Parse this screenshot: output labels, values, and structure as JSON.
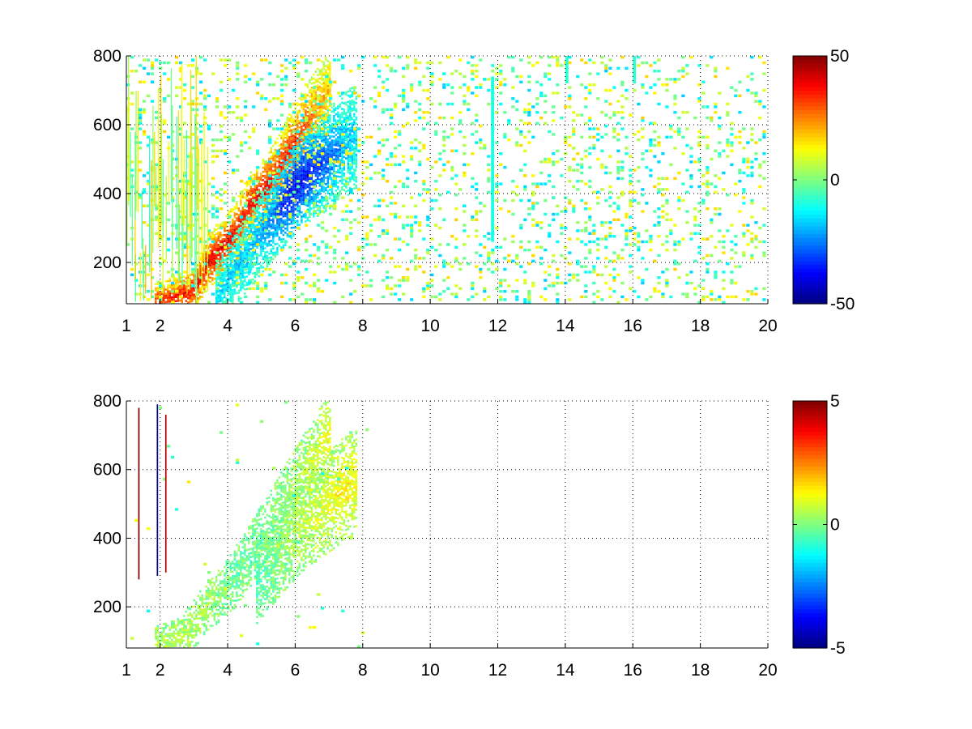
{
  "chart_data": [
    {
      "type": "heatmap",
      "title": "",
      "xlabel": "",
      "ylabel": "",
      "x_ticks": [
        1,
        2,
        4,
        6,
        8,
        10,
        12,
        14,
        16,
        18,
        20
      ],
      "y_ticks": [
        200,
        400,
        600,
        800
      ],
      "xlim": [
        1,
        20
      ],
      "ylim": [
        80,
        800
      ],
      "grid": true,
      "colormap": "jet",
      "clim": [
        -50,
        50
      ],
      "colorbar_ticks": [
        "50",
        "0",
        "-50"
      ],
      "colorbar_tick_values": [
        50,
        0,
        -50
      ],
      "ridge": [
        {
          "x": 1.8,
          "y": 85,
          "v": 30
        },
        {
          "x": 2.5,
          "y": 100,
          "v": 36
        },
        {
          "x": 3.0,
          "y": 120,
          "v": 38
        },
        {
          "x": 3.4,
          "y": 200,
          "v": 42
        },
        {
          "x": 3.8,
          "y": 235,
          "v": 40
        },
        {
          "x": 4.2,
          "y": 285,
          "v": 38
        },
        {
          "x": 4.6,
          "y": 360,
          "v": 36
        },
        {
          "x": 5.0,
          "y": 400,
          "v": 40
        },
        {
          "x": 5.4,
          "y": 450,
          "v": 36
        },
        {
          "x": 5.8,
          "y": 520,
          "v": 34
        },
        {
          "x": 6.2,
          "y": 580,
          "v": 30
        },
        {
          "x": 6.6,
          "y": 640,
          "v": 24
        },
        {
          "x": 7.0,
          "y": 700,
          "v": 18
        }
      ],
      "trough": [
        {
          "x": 3.6,
          "y": 90,
          "v": -14
        },
        {
          "x": 4.2,
          "y": 180,
          "v": -18
        },
        {
          "x": 4.8,
          "y": 260,
          "v": -20
        },
        {
          "x": 5.4,
          "y": 340,
          "v": -28
        },
        {
          "x": 5.8,
          "y": 390,
          "v": -40
        },
        {
          "x": 6.2,
          "y": 440,
          "v": -40
        },
        {
          "x": 6.6,
          "y": 470,
          "v": -34
        },
        {
          "x": 7.0,
          "y": 500,
          "v": -28
        },
        {
          "x": 7.4,
          "y": 540,
          "v": -22
        },
        {
          "x": 7.8,
          "y": 560,
          "v": -16
        }
      ],
      "stripes": [
        {
          "x": 11.8,
          "y_min": 260,
          "y_max": 740,
          "v": -10
        },
        {
          "x": 14.0,
          "y_min": 720,
          "y_max": 800,
          "v": -8
        },
        {
          "x": 16.0,
          "y_min": 720,
          "y_max": 800,
          "v": -8
        }
      ]
    },
    {
      "type": "heatmap",
      "title": "",
      "xlabel": "",
      "ylabel": "",
      "x_ticks": [
        1,
        2,
        4,
        6,
        8,
        10,
        12,
        14,
        16,
        18,
        20
      ],
      "y_ticks": [
        200,
        400,
        600,
        800
      ],
      "xlim": [
        1,
        20
      ],
      "ylim": [
        80,
        800
      ],
      "grid": true,
      "colormap": "jet",
      "clim": [
        -5,
        5
      ],
      "colorbar_ticks": [
        "5",
        "0",
        "-5"
      ],
      "colorbar_tick_values": [
        5,
        0,
        -5
      ],
      "ridge": [
        {
          "x": 1.8,
          "y": 85,
          "v": 0.6
        },
        {
          "x": 2.6,
          "y": 100,
          "v": 0.5
        },
        {
          "x": 3.4,
          "y": 200,
          "v": 0.3
        },
        {
          "x": 4.2,
          "y": 285,
          "v": -0.3
        },
        {
          "x": 5.0,
          "y": 400,
          "v": -0.2
        },
        {
          "x": 5.8,
          "y": 520,
          "v": 0.2
        },
        {
          "x": 6.6,
          "y": 640,
          "v": 0.8
        },
        {
          "x": 7.0,
          "y": 700,
          "v": 1.2
        }
      ],
      "trough": [
        {
          "x": 4.8,
          "y": 260,
          "v": -0.6
        },
        {
          "x": 5.8,
          "y": 390,
          "v": 0.3
        },
        {
          "x": 6.6,
          "y": 470,
          "v": 0.8
        },
        {
          "x": 7.4,
          "y": 540,
          "v": 1.4
        },
        {
          "x": 7.8,
          "y": 560,
          "v": 1.2
        }
      ],
      "stripes": [
        {
          "x": 1.35,
          "y_min": 280,
          "y_max": 780,
          "v": 5
        },
        {
          "x": 1.9,
          "y_min": 290,
          "y_max": 790,
          "v": -5
        },
        {
          "x": 2.15,
          "y_min": 300,
          "y_max": 760,
          "v": 4.5
        }
      ]
    }
  ]
}
